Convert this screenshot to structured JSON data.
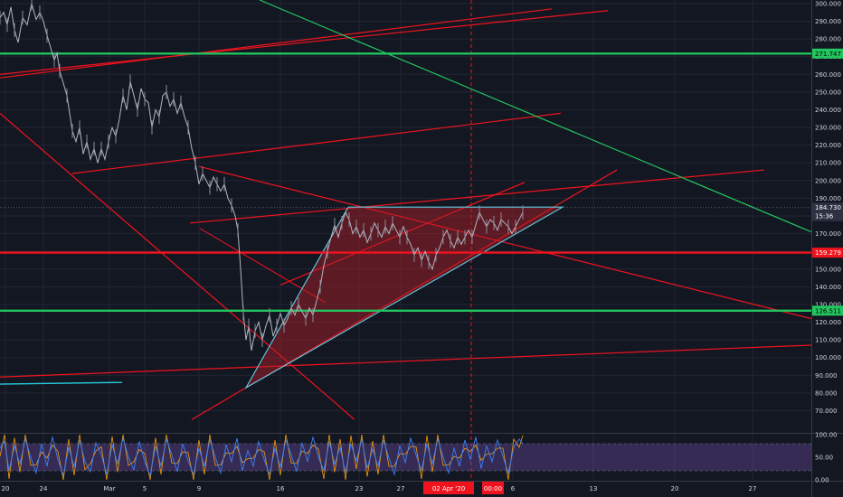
{
  "chart_data": {
    "type": "line",
    "title": "",
    "xlabel": "",
    "ylabel": "",
    "ylim": [
      58,
      302
    ],
    "y_ticks": [
      "70.000",
      "80.000",
      "90.000",
      "100.000",
      "110.000",
      "120.000",
      "130.000",
      "140.000",
      "150.000",
      "160.000",
      "170.000",
      "180.000",
      "190.000",
      "200.000",
      "210.000",
      "220.000",
      "230.000",
      "240.000",
      "250.000",
      "260.000",
      "270.000",
      "280.000",
      "290.000",
      "300.000"
    ],
    "x_ticks": [
      "20",
      "24",
      "Mar",
      "5",
      "9",
      "16",
      "23",
      "27",
      "6",
      "13",
      "20",
      "27"
    ],
    "x_highlight_labels": [
      "02 Apr '20",
      "00:00"
    ],
    "price_tags": [
      {
        "text": "271.747",
        "value": 271.747,
        "bg": "#22c55e",
        "fg": "#000000"
      },
      {
        "text": "184.730",
        "value": 184.73,
        "bg": "#2d3142",
        "fg": "#ffffff"
      },
      {
        "text": "15:36",
        "value": 179.9,
        "bg": "#2d3142",
        "fg": "#ffffff"
      },
      {
        "text": "159.279",
        "value": 159.279,
        "bg": "#f0131e",
        "fg": "#ffffff"
      },
      {
        "text": "126.511",
        "value": 126.511,
        "bg": "#22c55e",
        "fg": "#000000"
      }
    ],
    "series": [
      {
        "values": [
          [
            0,
            292
          ],
          [
            4,
            295
          ],
          [
            8,
            288
          ],
          [
            12,
            298
          ],
          [
            16,
            285
          ],
          [
            20,
            278
          ],
          [
            25,
            292
          ],
          [
            30,
            288
          ],
          [
            35,
            300
          ],
          [
            40,
            291
          ],
          [
            44,
            295
          ],
          [
            48,
            290
          ],
          [
            52,
            282
          ],
          [
            56,
            275
          ],
          [
            60,
            268
          ],
          [
            63,
            272
          ],
          [
            66,
            262
          ],
          [
            70,
            255
          ],
          [
            74,
            248
          ],
          [
            77,
            238
          ],
          [
            80,
            228
          ],
          [
            84,
            222
          ],
          [
            88,
            230
          ],
          [
            92,
            215
          ],
          [
            96,
            222
          ],
          [
            100,
            212
          ],
          [
            104,
            218
          ],
          [
            108,
            210
          ],
          [
            112,
            218
          ],
          [
            116,
            212
          ],
          [
            120,
            222
          ],
          [
            124,
            230
          ],
          [
            128,
            225
          ],
          [
            132,
            235
          ],
          [
            136,
            248
          ],
          [
            140,
            240
          ],
          [
            144,
            256
          ],
          [
            148,
            248
          ],
          [
            152,
            240
          ],
          [
            156,
            252
          ],
          [
            160,
            246
          ],
          [
            164,
            244
          ],
          [
            168,
            230
          ],
          [
            172,
            240
          ],
          [
            176,
            236
          ],
          [
            180,
            248
          ],
          [
            184,
            250
          ],
          [
            188,
            242
          ],
          [
            192,
            246
          ],
          [
            196,
            238
          ],
          [
            200,
            244
          ],
          [
            204,
            236
          ],
          [
            208,
            230
          ],
          [
            212,
            218
          ],
          [
            216,
            210
          ],
          [
            220,
            198
          ],
          [
            224,
            204
          ],
          [
            228,
            200
          ],
          [
            232,
            196
          ],
          [
            236,
            202
          ],
          [
            240,
            198
          ],
          [
            244,
            194
          ],
          [
            248,
            198
          ],
          [
            252,
            190
          ],
          [
            256,
            186
          ],
          [
            260,
            180
          ],
          [
            263,
            172
          ],
          [
            266,
            150
          ],
          [
            269,
            125
          ],
          [
            272,
            110
          ],
          [
            275,
            118
          ],
          [
            278,
            104
          ],
          [
            282,
            115
          ],
          [
            286,
            120
          ],
          [
            290,
            110
          ],
          [
            294,
            118
          ],
          [
            298,
            124
          ],
          [
            302,
            112
          ],
          [
            306,
            118
          ],
          [
            310,
            125
          ],
          [
            314,
            118
          ],
          [
            318,
            122
          ],
          [
            322,
            128
          ],
          [
            326,
            124
          ],
          [
            330,
            130
          ],
          [
            334,
            126
          ],
          [
            338,
            122
          ],
          [
            342,
            128
          ],
          [
            346,
            124
          ],
          [
            350,
            132
          ],
          [
            354,
            140
          ],
          [
            358,
            152
          ],
          [
            362,
            160
          ],
          [
            366,
            168
          ],
          [
            370,
            175
          ],
          [
            374,
            168
          ],
          [
            378,
            176
          ],
          [
            382,
            182
          ],
          [
            386,
            178
          ],
          [
            390,
            170
          ],
          [
            394,
            174
          ],
          [
            398,
            168
          ],
          [
            402,
            172
          ],
          [
            406,
            165
          ],
          [
            410,
            170
          ],
          [
            414,
            176
          ],
          [
            418,
            172
          ],
          [
            422,
            168
          ],
          [
            426,
            174
          ],
          [
            430,
            170
          ],
          [
            434,
            176
          ],
          [
            438,
            172
          ],
          [
            442,
            168
          ],
          [
            446,
            174
          ],
          [
            450,
            168
          ],
          [
            454,
            164
          ],
          [
            458,
            158
          ],
          [
            462,
            162
          ],
          [
            466,
            155
          ],
          [
            470,
            160
          ],
          [
            474,
            154
          ],
          [
            478,
            150
          ],
          [
            482,
            158
          ],
          [
            486,
            162
          ],
          [
            490,
            168
          ],
          [
            494,
            172
          ],
          [
            498,
            166
          ],
          [
            502,
            162
          ],
          [
            506,
            168
          ],
          [
            510,
            164
          ],
          [
            514,
            168
          ],
          [
            518,
            172
          ],
          [
            522,
            168
          ],
          [
            526,
            175
          ],
          [
            530,
            182
          ],
          [
            534,
            178
          ],
          [
            538,
            174
          ],
          [
            542,
            178
          ],
          [
            546,
            176
          ],
          [
            550,
            172
          ],
          [
            554,
            178
          ],
          [
            558,
            176
          ],
          [
            562,
            174
          ],
          [
            566,
            170
          ],
          [
            570,
            174
          ],
          [
            574,
            178
          ],
          [
            578,
            182
          ]
        ]
      },
      {
        "values": [
          [
            0,
            70
          ],
          [
            5,
            85
          ],
          [
            10,
            20
          ],
          [
            16,
            75
          ],
          [
            22,
            35
          ],
          [
            28,
            90
          ],
          [
            34,
            50
          ],
          [
            40,
            15
          ],
          [
            46,
            80
          ],
          [
            52,
            30
          ],
          [
            58,
            95
          ],
          [
            64,
            45
          ],
          [
            70,
            10
          ],
          [
            76,
            72
          ],
          [
            82,
            28
          ],
          [
            88,
            88
          ],
          [
            94,
            40
          ],
          [
            100,
            18
          ],
          [
            106,
            82
          ],
          [
            112,
            55
          ],
          [
            118,
            12
          ],
          [
            124,
            78
          ],
          [
            130,
            35
          ],
          [
            136,
            92
          ],
          [
            142,
            50
          ],
          [
            148,
            22
          ],
          [
            154,
            85
          ],
          [
            160,
            40
          ],
          [
            166,
            10
          ],
          [
            172,
            75
          ],
          [
            178,
            30
          ],
          [
            184,
            90
          ],
          [
            190,
            55
          ],
          [
            196,
            18
          ],
          [
            202,
            80
          ],
          [
            208,
            42
          ],
          [
            214,
            12
          ],
          [
            220,
            70
          ],
          [
            226,
            30
          ],
          [
            232,
            88
          ],
          [
            238,
            50
          ],
          [
            244,
            15
          ],
          [
            250,
            78
          ],
          [
            256,
            40
          ],
          [
            262,
            92
          ],
          [
            268,
            20
          ],
          [
            274,
            65
          ],
          [
            280,
            30
          ],
          [
            286,
            85
          ],
          [
            292,
            45
          ],
          [
            298,
            12
          ],
          [
            304,
            70
          ],
          [
            310,
            28
          ],
          [
            316,
            88
          ],
          [
            322,
            55
          ],
          [
            328,
            18
          ],
          [
            334,
            82
          ],
          [
            340,
            40
          ],
          [
            346,
            95
          ],
          [
            352,
            50
          ],
          [
            358,
            20
          ],
          [
            364,
            85
          ],
          [
            370,
            35
          ],
          [
            376,
            72
          ],
          [
            382,
            15
          ],
          [
            388,
            80
          ],
          [
            394,
            42
          ],
          [
            400,
            90
          ],
          [
            406,
            25
          ],
          [
            412,
            68
          ],
          [
            418,
            30
          ],
          [
            424,
            88
          ],
          [
            430,
            48
          ],
          [
            436,
            12
          ],
          [
            442,
            76
          ],
          [
            448,
            38
          ],
          [
            454,
            92
          ],
          [
            460,
            55
          ],
          [
            466,
            20
          ],
          [
            472,
            80
          ],
          [
            478,
            35
          ],
          [
            484,
            90
          ],
          [
            490,
            50
          ],
          [
            496,
            15
          ],
          [
            502,
            70
          ],
          [
            508,
            30
          ],
          [
            514,
            88
          ],
          [
            520,
            45
          ],
          [
            526,
            95
          ],
          [
            532,
            25
          ],
          [
            538,
            75
          ],
          [
            544,
            40
          ],
          [
            550,
            88
          ],
          [
            556,
            52
          ],
          [
            562,
            15
          ],
          [
            568,
            72
          ],
          [
            574,
            90
          ],
          [
            578,
            80
          ]
        ]
      }
    ]
  }
}
